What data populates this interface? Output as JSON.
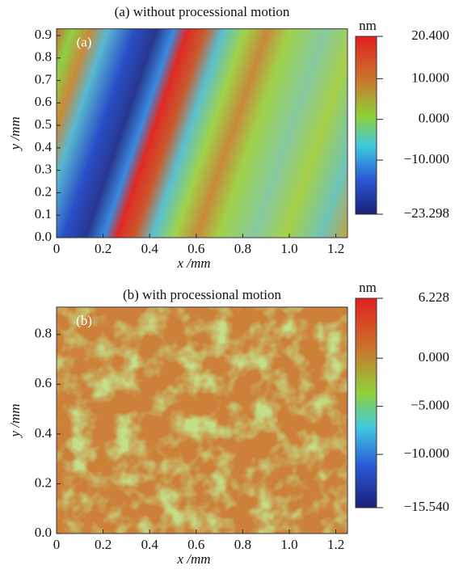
{
  "chart_data": [
    {
      "type": "heatmap",
      "title": "(a) without processional motion",
      "panel_label": "(a)",
      "xlabel": "x /mm",
      "ylabel": "y /mm",
      "xlim": [
        0,
        1.25
      ],
      "ylim": [
        0,
        0.93
      ],
      "xticks": [
        0,
        0.2,
        0.4,
        0.6,
        0.8,
        {
          "value": 1,
          "label": "1.0"
        },
        1.2
      ],
      "yticks": [
        {
          "value": 0,
          "label": "0.0"
        },
        0.1,
        0.2,
        0.3,
        0.4,
        0.5,
        0.6,
        0.7,
        0.8,
        0.9
      ],
      "colorbar": {
        "unit": "nm",
        "lim": [
          -23.298,
          20.4
        ],
        "ticks": [
          {
            "value": 20.4,
            "label": "20.400"
          },
          {
            "value": 10,
            "label": "10.000"
          },
          {
            "value": 0,
            "label": "0.000"
          },
          {
            "value": -10,
            "label": "−10.000"
          },
          {
            "value": -23.298,
            "label": "−23.298"
          }
        ]
      }
    },
    {
      "type": "heatmap",
      "title": "(b) with processional motion",
      "panel_label": "(b)",
      "xlabel": "x /mm",
      "ylabel": "y /mm",
      "xlim": [
        0,
        1.25
      ],
      "ylim": [
        0,
        0.91
      ],
      "xticks": [
        0,
        0.2,
        0.4,
        0.6,
        0.8,
        {
          "value": 1,
          "label": "1.0"
        },
        1.2
      ],
      "yticks": [
        {
          "value": 0,
          "label": "0.0"
        },
        0.2,
        0.4,
        0.6,
        0.8
      ],
      "colorbar": {
        "unit": "nm",
        "lim": [
          -15.54,
          6.228
        ],
        "ticks": [
          {
            "value": 6.228,
            "label": "6.228"
          },
          {
            "value": 0,
            "label": "0.000"
          },
          {
            "value": -5,
            "label": "−5.000"
          },
          {
            "value": -10,
            "label": "−10.000"
          },
          {
            "value": -15.54,
            "label": "−15.540"
          }
        ]
      }
    }
  ]
}
